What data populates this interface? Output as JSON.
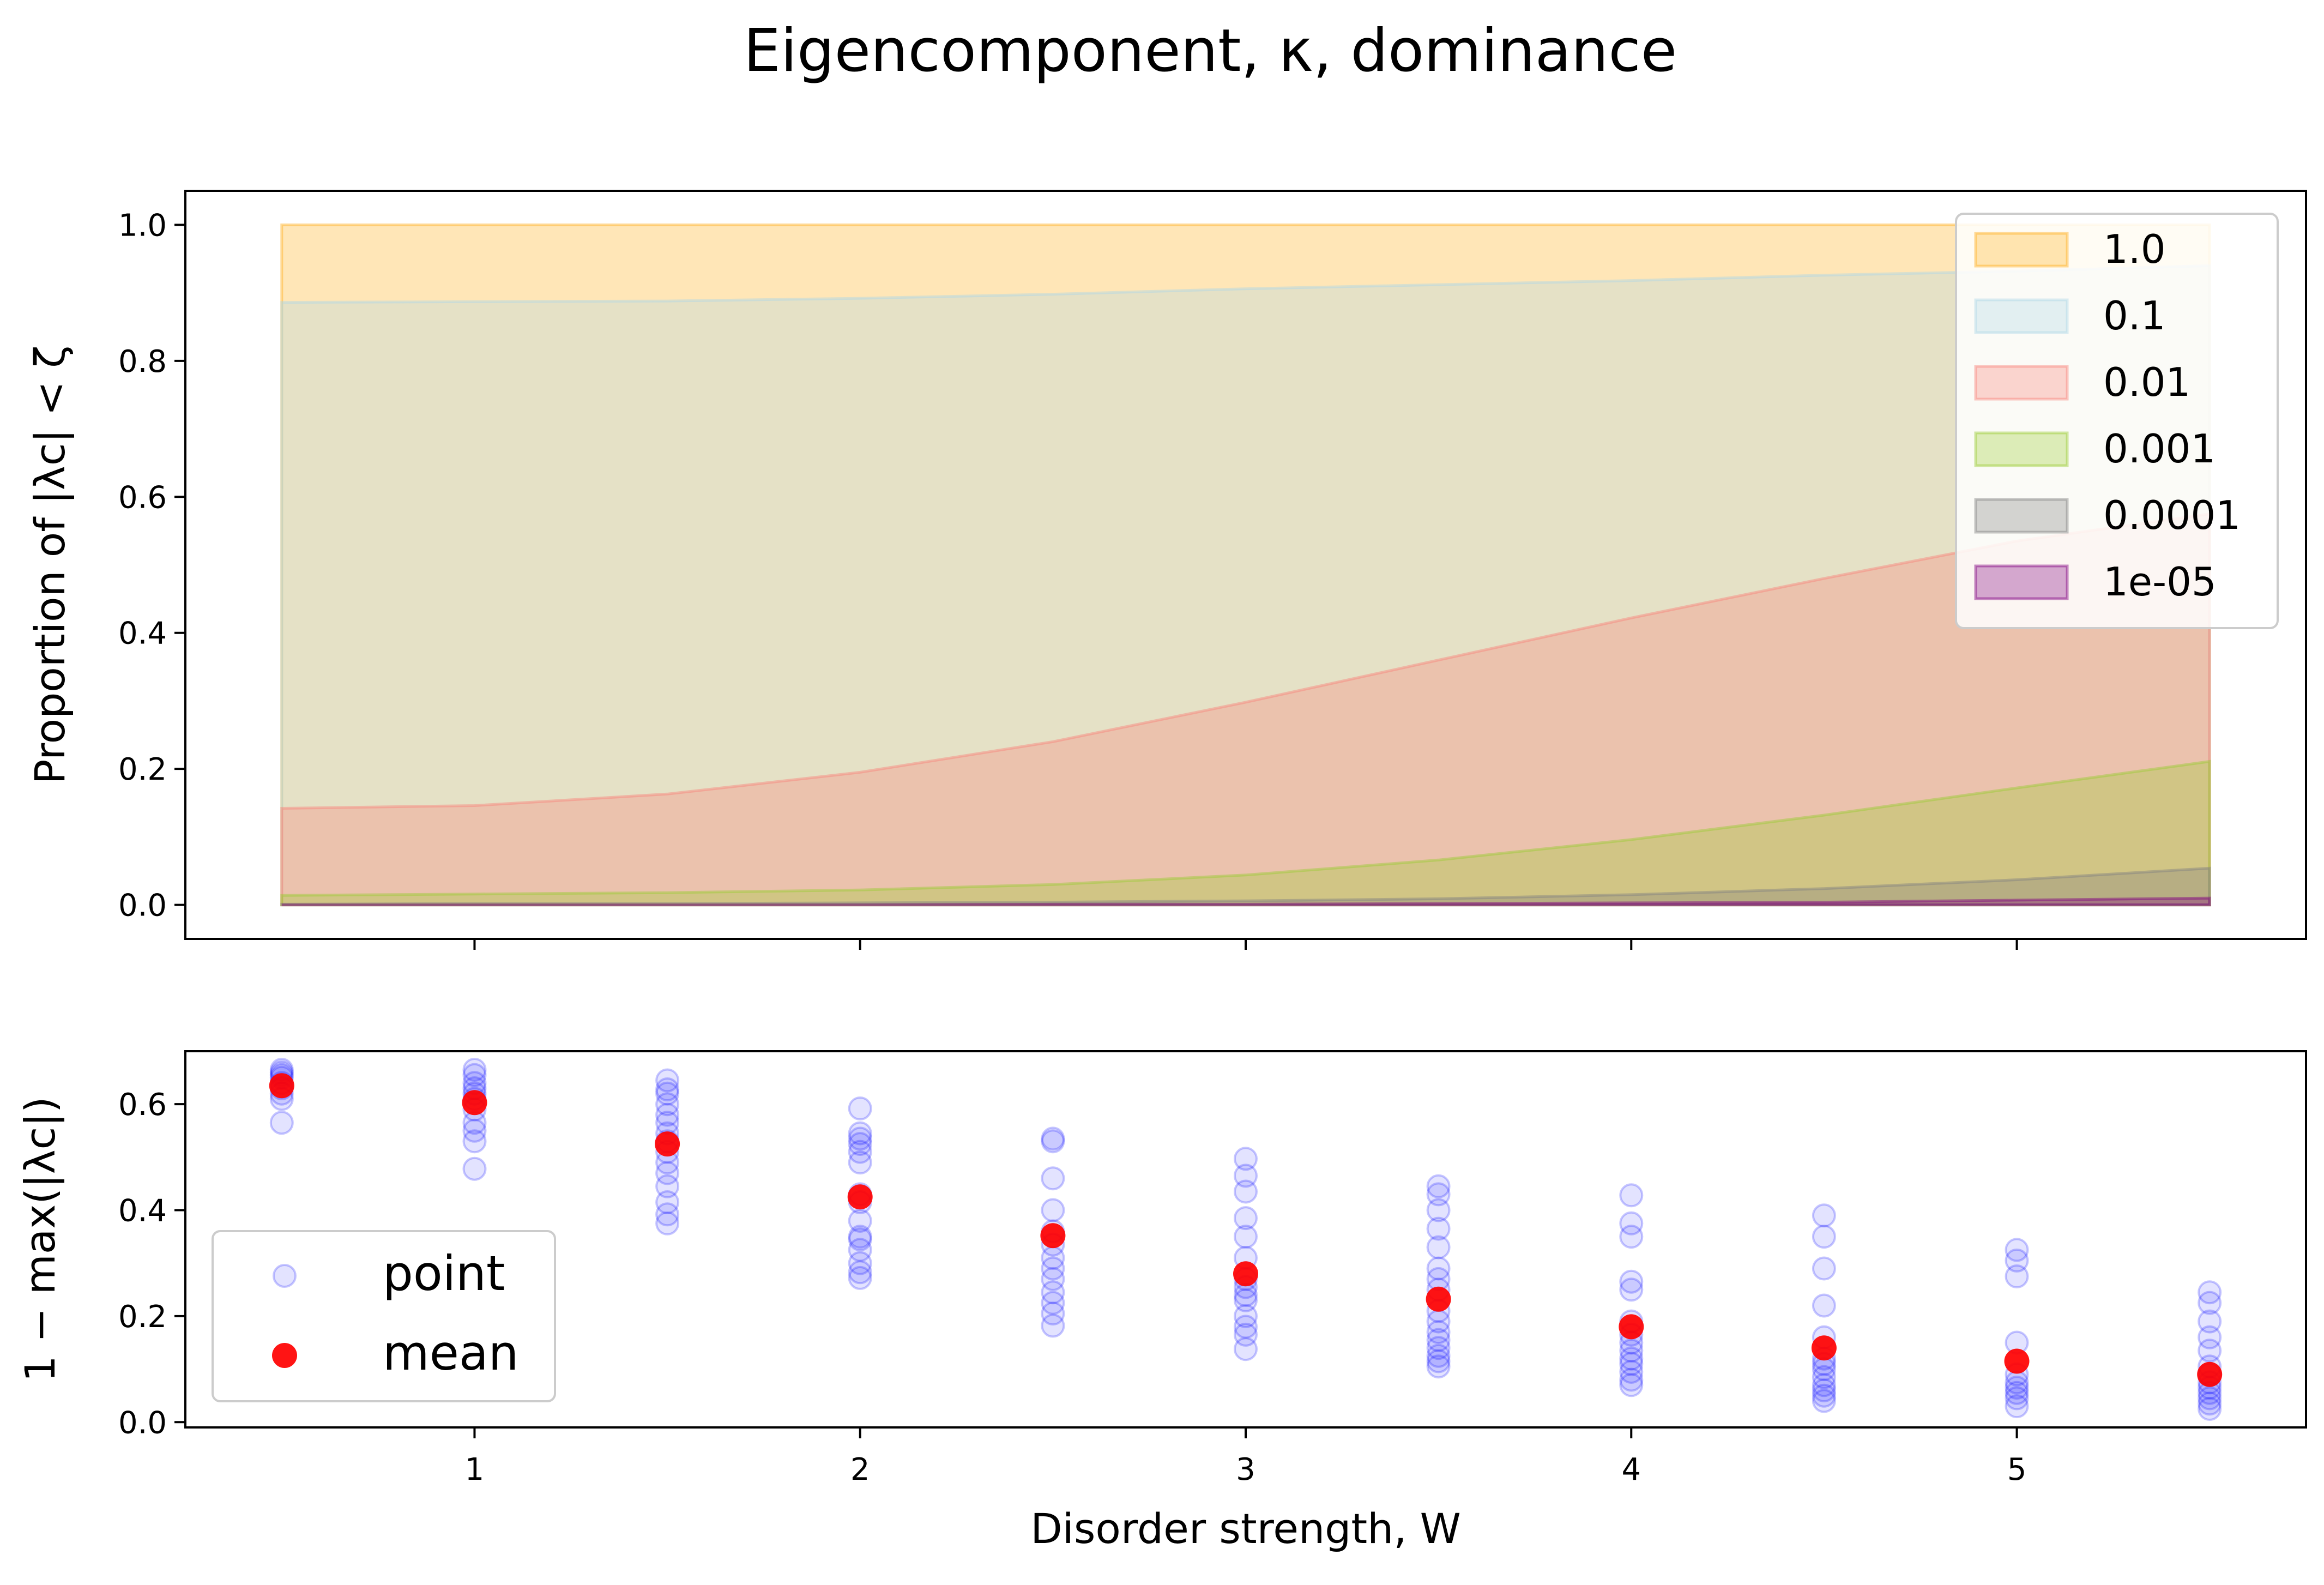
{
  "title": "Eigencomponent, κ, dominance",
  "chart_data": [
    {
      "type": "area",
      "ylabel": "Proportion of |λc| < ζ",
      "xlabel": "",
      "x": [
        0.5,
        1.0,
        1.5,
        2.0,
        2.5,
        3.0,
        3.5,
        4.0,
        4.5,
        5.0,
        5.5
      ],
      "xlim": [
        0.25,
        5.75
      ],
      "ylim": [
        -0.05,
        1.05
      ],
      "yticks": [
        "0.0",
        "0.2",
        "0.4",
        "0.6",
        "0.8",
        "1.0"
      ],
      "grid": false,
      "legend_position": "top-right",
      "series": [
        {
          "name": "1.0",
          "color": "#ffb020",
          "values": [
            1.0,
            1.0,
            1.0,
            1.0,
            1.0,
            1.0,
            1.0,
            1.0,
            1.0,
            1.0,
            1.0
          ]
        },
        {
          "name": "0.1",
          "color": "#add8e6",
          "values": [
            0.886,
            0.887,
            0.888,
            0.892,
            0.898,
            0.906,
            0.912,
            0.918,
            0.926,
            0.932,
            0.94
          ]
        },
        {
          "name": "0.01",
          "color": "#f88379",
          "values": [
            0.142,
            0.146,
            0.163,
            0.195,
            0.24,
            0.298,
            0.36,
            0.422,
            0.48,
            0.535,
            0.575
          ]
        },
        {
          "name": "0.001",
          "color": "#9acd32",
          "values": [
            0.014,
            0.016,
            0.018,
            0.022,
            0.03,
            0.044,
            0.066,
            0.096,
            0.132,
            0.172,
            0.211
          ]
        },
        {
          "name": "0.0001",
          "color": "#808080",
          "values": [
            0.001,
            0.002,
            0.002,
            0.003,
            0.004,
            0.006,
            0.009,
            0.015,
            0.024,
            0.037,
            0.054
          ]
        },
        {
          "name": "1e-05",
          "color": "#800080",
          "values": [
            0.0,
            0.0,
            0.0,
            0.0,
            0.001,
            0.001,
            0.002,
            0.003,
            0.004,
            0.007,
            0.01
          ]
        }
      ]
    },
    {
      "type": "scatter",
      "ylabel": "1 − max(|λc|)",
      "xlabel": "Disorder strength, W",
      "xlim": [
        0.25,
        5.75
      ],
      "ylim": [
        -0.01,
        0.7
      ],
      "xticks": [
        "1",
        "2",
        "3",
        "4",
        "5"
      ],
      "yticks": [
        "0.0",
        "0.2",
        "0.4",
        "0.6"
      ],
      "grid": false,
      "legend_position": "bottom-left",
      "series": [
        {
          "name": "point",
          "color": "#0000ff",
          "points": [
            [
              0.5,
              0.565
            ],
            [
              0.5,
              0.61
            ],
            [
              0.5,
              0.62
            ],
            [
              0.5,
              0.63
            ],
            [
              0.5,
              0.64
            ],
            [
              0.5,
              0.65
            ],
            [
              0.5,
              0.655
            ],
            [
              0.5,
              0.66
            ],
            [
              0.5,
              0.665
            ],
            [
              1.0,
              0.478
            ],
            [
              1.0,
              0.53
            ],
            [
              1.0,
              0.55
            ],
            [
              1.0,
              0.565
            ],
            [
              1.0,
              0.59
            ],
            [
              1.0,
              0.61
            ],
            [
              1.0,
              0.62
            ],
            [
              1.0,
              0.63
            ],
            [
              1.0,
              0.64
            ],
            [
              1.0,
              0.655
            ],
            [
              1.0,
              0.665
            ],
            [
              1.5,
              0.375
            ],
            [
              1.5,
              0.392
            ],
            [
              1.5,
              0.415
            ],
            [
              1.5,
              0.445
            ],
            [
              1.5,
              0.47
            ],
            [
              1.5,
              0.49
            ],
            [
              1.5,
              0.51
            ],
            [
              1.5,
              0.53
            ],
            [
              1.5,
              0.545
            ],
            [
              1.5,
              0.565
            ],
            [
              1.5,
              0.58
            ],
            [
              1.5,
              0.6
            ],
            [
              1.5,
              0.62
            ],
            [
              1.5,
              0.628
            ],
            [
              1.5,
              0.645
            ],
            [
              2.0,
              0.272
            ],
            [
              2.0,
              0.283
            ],
            [
              2.0,
              0.3
            ],
            [
              2.0,
              0.325
            ],
            [
              2.0,
              0.345
            ],
            [
              2.0,
              0.35
            ],
            [
              2.0,
              0.38
            ],
            [
              2.0,
              0.415
            ],
            [
              2.0,
              0.43
            ],
            [
              2.0,
              0.49
            ],
            [
              2.0,
              0.51
            ],
            [
              2.0,
              0.525
            ],
            [
              2.0,
              0.535
            ],
            [
              2.0,
              0.545
            ],
            [
              2.0,
              0.592
            ],
            [
              2.5,
              0.182
            ],
            [
              2.5,
              0.205
            ],
            [
              2.5,
              0.225
            ],
            [
              2.5,
              0.245
            ],
            [
              2.5,
              0.27
            ],
            [
              2.5,
              0.29
            ],
            [
              2.5,
              0.31
            ],
            [
              2.5,
              0.335
            ],
            [
              2.5,
              0.36
            ],
            [
              2.5,
              0.4
            ],
            [
              2.5,
              0.46
            ],
            [
              2.5,
              0.53
            ],
            [
              2.5,
              0.535
            ],
            [
              3.0,
              0.138
            ],
            [
              3.0,
              0.165
            ],
            [
              3.0,
              0.18
            ],
            [
              3.0,
              0.2
            ],
            [
              3.0,
              0.23
            ],
            [
              3.0,
              0.24
            ],
            [
              3.0,
              0.255
            ],
            [
              3.0,
              0.27
            ],
            [
              3.0,
              0.31
            ],
            [
              3.0,
              0.35
            ],
            [
              3.0,
              0.385
            ],
            [
              3.0,
              0.435
            ],
            [
              3.0,
              0.465
            ],
            [
              3.0,
              0.497
            ],
            [
              3.5,
              0.105
            ],
            [
              3.5,
              0.115
            ],
            [
              3.5,
              0.125
            ],
            [
              3.5,
              0.14
            ],
            [
              3.5,
              0.155
            ],
            [
              3.5,
              0.17
            ],
            [
              3.5,
              0.19
            ],
            [
              3.5,
              0.21
            ],
            [
              3.5,
              0.25
            ],
            [
              3.5,
              0.27
            ],
            [
              3.5,
              0.29
            ],
            [
              3.5,
              0.33
            ],
            [
              3.5,
              0.365
            ],
            [
              3.5,
              0.4
            ],
            [
              3.5,
              0.43
            ],
            [
              3.5,
              0.445
            ],
            [
              4.0,
              0.07
            ],
            [
              4.0,
              0.08
            ],
            [
              4.0,
              0.095
            ],
            [
              4.0,
              0.11
            ],
            [
              4.0,
              0.12
            ],
            [
              4.0,
              0.135
            ],
            [
              4.0,
              0.15
            ],
            [
              4.0,
              0.165
            ],
            [
              4.0,
              0.19
            ],
            [
              4.0,
              0.25
            ],
            [
              4.0,
              0.265
            ],
            [
              4.0,
              0.35
            ],
            [
              4.0,
              0.375
            ],
            [
              4.0,
              0.428
            ],
            [
              4.5,
              0.04
            ],
            [
              4.5,
              0.05
            ],
            [
              4.5,
              0.06
            ],
            [
              4.5,
              0.07
            ],
            [
              4.5,
              0.085
            ],
            [
              4.5,
              0.1
            ],
            [
              4.5,
              0.11
            ],
            [
              4.5,
              0.12
            ],
            [
              4.5,
              0.16
            ],
            [
              4.5,
              0.22
            ],
            [
              4.5,
              0.29
            ],
            [
              4.5,
              0.35
            ],
            [
              4.5,
              0.39
            ],
            [
              5.0,
              0.03
            ],
            [
              5.0,
              0.045
            ],
            [
              5.0,
              0.055
            ],
            [
              5.0,
              0.065
            ],
            [
              5.0,
              0.075
            ],
            [
              5.0,
              0.09
            ],
            [
              5.0,
              0.15
            ],
            [
              5.0,
              0.275
            ],
            [
              5.0,
              0.305
            ],
            [
              5.0,
              0.325
            ],
            [
              5.5,
              0.025
            ],
            [
              5.5,
              0.035
            ],
            [
              5.5,
              0.045
            ],
            [
              5.5,
              0.055
            ],
            [
              5.5,
              0.065
            ],
            [
              5.5,
              0.075
            ],
            [
              5.5,
              0.09
            ],
            [
              5.5,
              0.105
            ],
            [
              5.5,
              0.135
            ],
            [
              5.5,
              0.16
            ],
            [
              5.5,
              0.19
            ],
            [
              5.5,
              0.225
            ],
            [
              5.5,
              0.245
            ]
          ]
        },
        {
          "name": "mean",
          "color": "#ff0000",
          "points": [
            [
              0.5,
              0.635
            ],
            [
              1.0,
              0.603
            ],
            [
              1.5,
              0.525
            ],
            [
              2.0,
              0.425
            ],
            [
              2.5,
              0.352
            ],
            [
              3.0,
              0.28
            ],
            [
              3.5,
              0.232
            ],
            [
              4.0,
              0.18
            ],
            [
              4.5,
              0.14
            ],
            [
              5.0,
              0.115
            ],
            [
              5.5,
              0.09
            ]
          ]
        }
      ]
    }
  ]
}
